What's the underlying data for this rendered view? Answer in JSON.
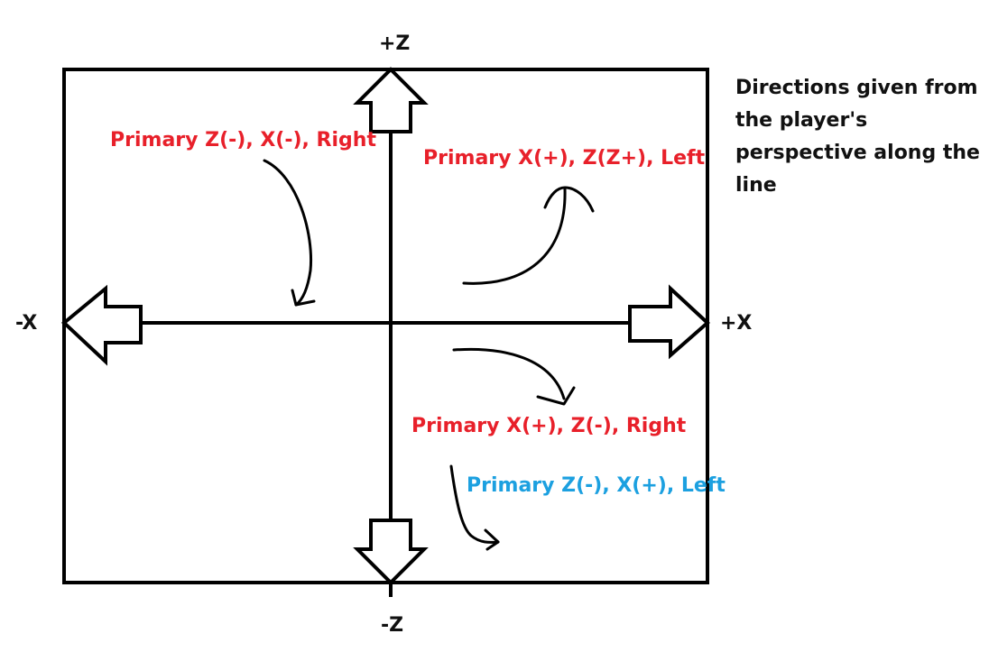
{
  "axes": {
    "plus_z": "+Z",
    "minus_z": "-Z",
    "plus_x": "+X",
    "minus_x": "-X"
  },
  "annotations": [
    {
      "id": "top-left",
      "text": "Primary Z(-), X(-), Right",
      "color": "#e8202a"
    },
    {
      "id": "top-right",
      "text": "Primary X(+), Z(Z+), Left",
      "color": "#e8202a"
    },
    {
      "id": "bottom-right-red",
      "text": "Primary X(+), Z(-), Right",
      "color": "#e8202a"
    },
    {
      "id": "bottom-right-blue",
      "text": "Primary Z(-), X(+), Left",
      "color": "#1ca0e0"
    }
  ],
  "note": "Directions given from the player's perspective along the line",
  "colors": {
    "line": "#000000",
    "red": "#e8202a",
    "blue": "#1ca0e0"
  }
}
